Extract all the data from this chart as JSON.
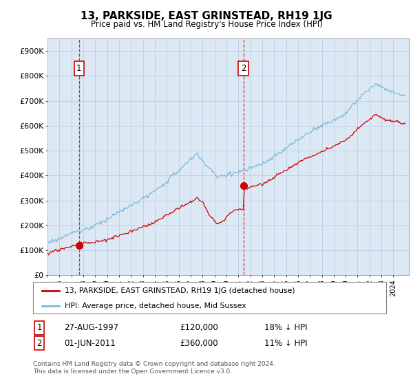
{
  "title": "13, PARKSIDE, EAST GRINSTEAD, RH19 1JG",
  "subtitle": "Price paid vs. HM Land Registry's House Price Index (HPI)",
  "ylabel_ticks": [
    "£0",
    "£100K",
    "£200K",
    "£300K",
    "£400K",
    "£500K",
    "£600K",
    "£700K",
    "£800K",
    "£900K"
  ],
  "ylim": [
    0,
    950000
  ],
  "xlim_start": 1995.0,
  "xlim_end": 2025.3,
  "hpi_color": "#7ab8d8",
  "price_color": "#cc0000",
  "purchase1_x": 1997.65,
  "purchase1_y": 120000,
  "purchase1_label": "1",
  "purchase2_x": 2011.42,
  "purchase2_y": 360000,
  "purchase2_label": "2",
  "legend_line1": "13, PARKSIDE, EAST GRINSTEAD, RH19 1JG (detached house)",
  "legend_line2": "HPI: Average price, detached house, Mid Sussex",
  "table_row1": [
    "1",
    "27-AUG-1997",
    "£120,000",
    "18% ↓ HPI"
  ],
  "table_row2": [
    "2",
    "01-JUN-2011",
    "£360,000",
    "11% ↓ HPI"
  ],
  "footer": "Contains HM Land Registry data © Crown copyright and database right 2024.\nThis data is licensed under the Open Government Licence v3.0.",
  "background_color": "#ffffff",
  "chart_bg_color": "#dce9f5",
  "grid_color": "#b0c8e0"
}
